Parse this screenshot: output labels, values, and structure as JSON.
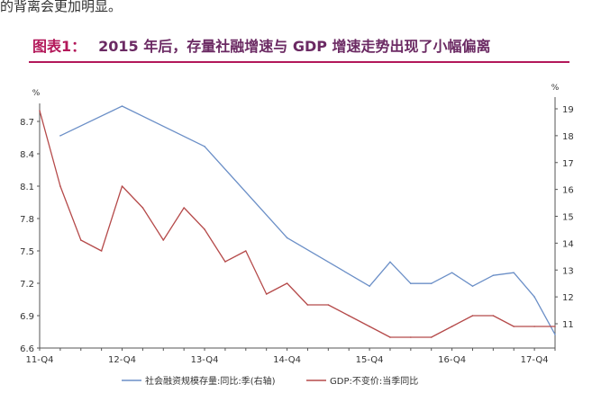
{
  "top_text": "的背离会更加明显。",
  "figure": {
    "label": "图表1：",
    "title": "2015 年后，存量社融增速与 GDP 增速走势出现了小幅偏离"
  },
  "chart_data": {
    "type": "line",
    "title": "2015 年后，存量社融增速与 GDP 增速走势出现了小幅偏离",
    "x_categories": [
      "11-Q4",
      "",
      "",
      "",
      "12-Q4",
      "",
      "",
      "",
      "13-Q4",
      "",
      "",
      "",
      "14-Q4",
      "",
      "",
      "",
      "15-Q4",
      "",
      "",
      "",
      "16-Q4",
      "",
      "",
      "",
      "17-Q4",
      ""
    ],
    "x_tick_labels": [
      "11-Q4",
      "12-Q4",
      "13-Q4",
      "14-Q4",
      "15-Q4",
      "16-Q4",
      "17-Q4"
    ],
    "left_axis": {
      "unit": "%",
      "ylim": [
        6.6,
        8.9
      ],
      "ticks": [
        "6.6",
        "6.9",
        "7.2",
        "7.5",
        "7.8",
        "8.1",
        "8.4",
        "8.7"
      ]
    },
    "right_axis": {
      "unit": "%",
      "ylim": [
        9.9,
        19.5
      ],
      "ticks": [
        "11",
        "12",
        "13",
        "14",
        "15",
        "16",
        "17",
        "18",
        "19"
      ]
    },
    "grid": false,
    "legend_position": "bottom",
    "series": [
      {
        "name": "社会融资规模存量:同比:季(右轴)",
        "axis": "right",
        "color": "#6b8fc7",
        "values": [
          null,
          18.0,
          null,
          null,
          19.1,
          null,
          null,
          null,
          17.6,
          null,
          null,
          null,
          14.2,
          null,
          null,
          null,
          12.4,
          13.3,
          12.5,
          12.5,
          12.9,
          12.4,
          12.8,
          12.9,
          12.0,
          10.6
        ]
      },
      {
        "name": "GDP:不变价:当季同比",
        "axis": "left",
        "color": "#b54a4a",
        "values": [
          8.8,
          8.1,
          7.6,
          7.5,
          8.1,
          7.9,
          7.6,
          7.9,
          7.7,
          7.4,
          7.5,
          7.1,
          7.2,
          7.0,
          7.0,
          6.9,
          6.8,
          6.7,
          6.7,
          6.7,
          6.8,
          6.9,
          6.9,
          6.8,
          6.8,
          6.8
        ]
      }
    ]
  }
}
